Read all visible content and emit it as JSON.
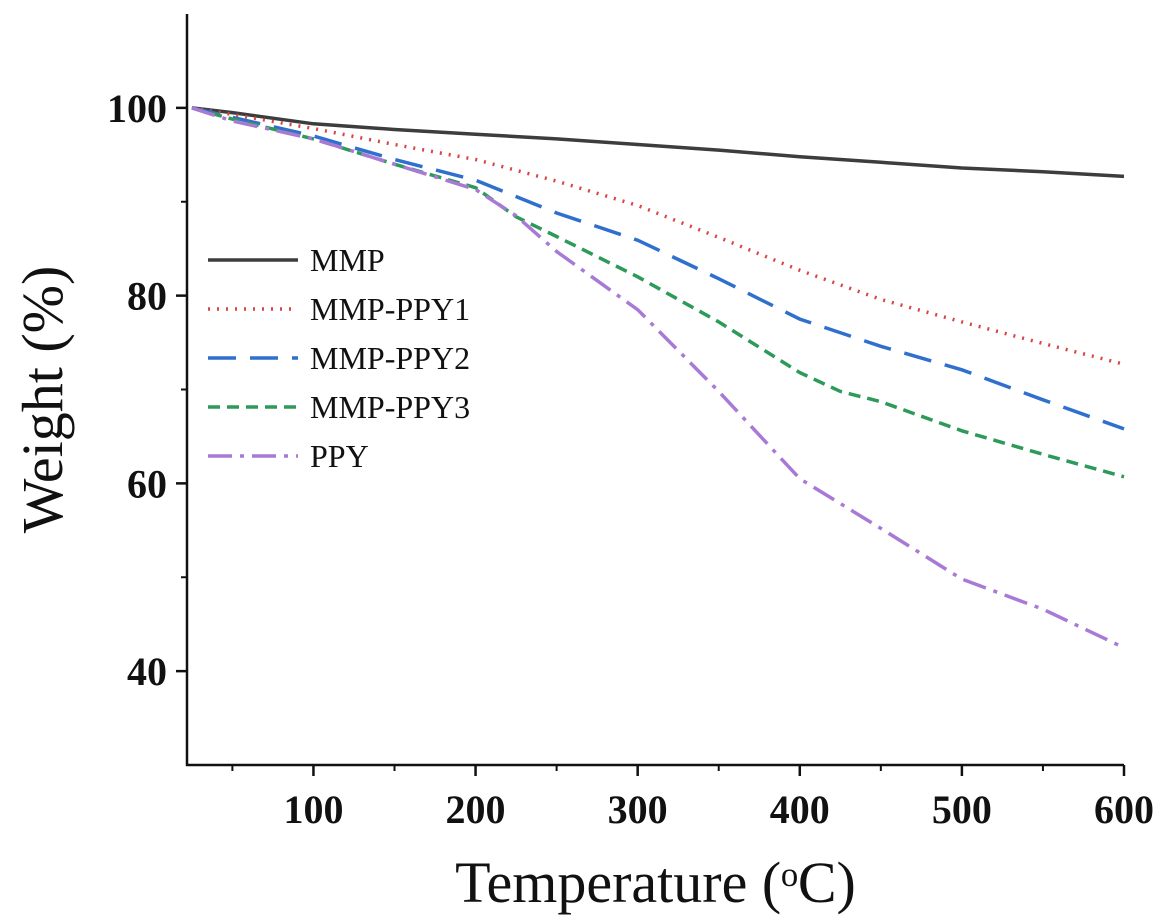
{
  "chart_data": {
    "type": "line",
    "xlabel": "Temperature (ᵒC)",
    "ylabel": "Weight (%)",
    "xlim": [
      22,
      600
    ],
    "ylim": [
      30,
      110
    ],
    "xticks": [
      100,
      200,
      300,
      400,
      500,
      600
    ],
    "yticks": [
      40,
      60,
      80,
      100
    ],
    "xminorticks": [
      50,
      150,
      250,
      350,
      450,
      550
    ],
    "yminorticks": [
      50,
      70,
      90
    ],
    "legend": "upper-left",
    "series": [
      {
        "name": "MMP",
        "color": "#3d3d3d",
        "linestyle": "solid",
        "x": [
          25,
          50,
          100,
          150,
          200,
          250,
          300,
          350,
          400,
          450,
          500,
          550,
          600
        ],
        "values": [
          100,
          99.5,
          98.3,
          97.7,
          97.2,
          96.7,
          96.1,
          95.5,
          94.8,
          94.2,
          93.6,
          93.2,
          92.7
        ]
      },
      {
        "name": "MMP-PPY1",
        "color": "#d94444",
        "linestyle": "dotted",
        "x": [
          25,
          50,
          100,
          150,
          200,
          250,
          300,
          350,
          400,
          450,
          500,
          550,
          600
        ],
        "values": [
          100,
          99.3,
          97.8,
          96.1,
          94.5,
          92.2,
          89.6,
          86.2,
          82.7,
          79.6,
          77.2,
          74.9,
          72.7
        ]
      },
      {
        "name": "MMP-PPY2",
        "color": "#2f6fce",
        "linestyle": "dashed",
        "x": [
          25,
          50,
          100,
          150,
          200,
          250,
          300,
          350,
          400,
          450,
          500,
          550,
          600
        ],
        "values": [
          100,
          99,
          97,
          94.5,
          92.3,
          88.8,
          85.9,
          81.8,
          77.5,
          74.6,
          72.1,
          68.9,
          65.8
        ]
      },
      {
        "name": "MMP-PPY3",
        "color": "#2e9a5a",
        "linestyle": "dashed-short",
        "x": [
          25,
          50,
          100,
          150,
          200,
          225,
          250,
          300,
          350,
          400,
          425,
          450,
          500,
          550,
          600
        ],
        "values": [
          100,
          98.8,
          96.7,
          94,
          91.5,
          88.4,
          86.3,
          82,
          77.2,
          71.8,
          69.8,
          68.7,
          65.6,
          63.1,
          60.7
        ]
      },
      {
        "name": "PPY",
        "color": "#a87ad6",
        "linestyle": "dashdot",
        "x": [
          25,
          50,
          100,
          150,
          200,
          225,
          250,
          300,
          350,
          400,
          450,
          500,
          550,
          600
        ],
        "values": [
          100,
          98.6,
          96.7,
          94,
          91.3,
          88.5,
          84.7,
          78.5,
          69.8,
          60.5,
          55.2,
          49.8,
          46.6,
          42.5
        ]
      }
    ]
  }
}
